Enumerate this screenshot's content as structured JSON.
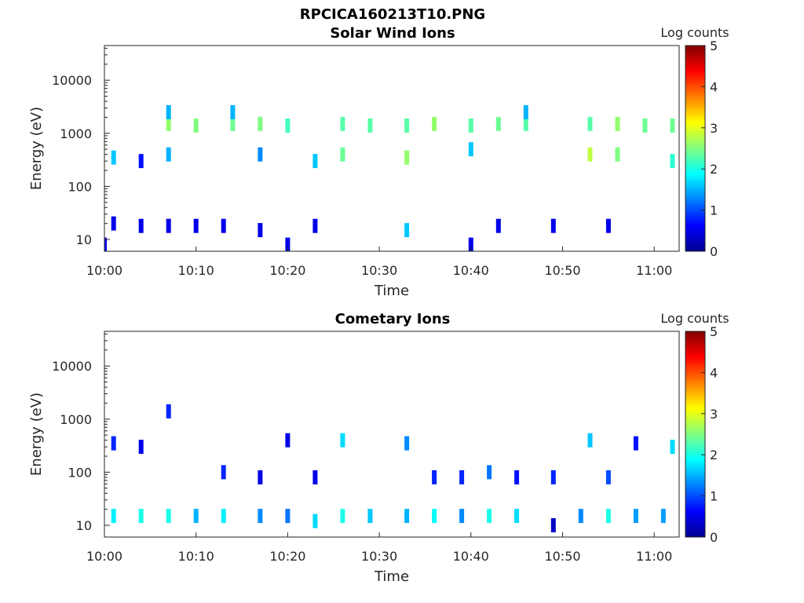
{
  "figure": {
    "title": "RPCICA160213T10.PNG"
  },
  "chart_data": [
    {
      "type": "heatmap",
      "title": "Solar Wind Ions",
      "xlabel": "Time",
      "ylabel": "Energy (eV)",
      "yscale": "log",
      "ylim": [
        6,
        45000
      ],
      "x_ticks": [
        "10:00",
        "10:10",
        "10:20",
        "10:30",
        "10:40",
        "10:50",
        "11:00"
      ],
      "y_ticks": [
        "10",
        "100",
        "1000",
        "10000"
      ],
      "colorbar": {
        "label": "Log counts",
        "range": [
          0,
          5
        ],
        "ticks": [
          "0",
          "1",
          "2",
          "3",
          "4",
          "5"
        ]
      },
      "cells": [
        {
          "t": "10:00",
          "e": 8,
          "v": 0.5
        },
        {
          "t": "10:01",
          "e": 20,
          "v": 0.5
        },
        {
          "t": "10:01",
          "e": 350,
          "v": 1.6
        },
        {
          "t": "10:04",
          "e": 18,
          "v": 0.5
        },
        {
          "t": "10:04",
          "e": 300,
          "v": 0.7
        },
        {
          "t": "10:07",
          "e": 18,
          "v": 0.5
        },
        {
          "t": "10:07",
          "e": 1500,
          "v": 2.6
        },
        {
          "t": "10:07",
          "e": 2500,
          "v": 1.5
        },
        {
          "t": "10:07",
          "e": 400,
          "v": 1.5
        },
        {
          "t": "10:10",
          "e": 18,
          "v": 0.5
        },
        {
          "t": "10:10",
          "e": 1400,
          "v": 2.5
        },
        {
          "t": "10:13",
          "e": 18,
          "v": 0.5
        },
        {
          "t": "10:14",
          "e": 1500,
          "v": 2.4
        },
        {
          "t": "10:14",
          "e": 2500,
          "v": 1.5
        },
        {
          "t": "10:17",
          "e": 15,
          "v": 0.5
        },
        {
          "t": "10:17",
          "e": 1500,
          "v": 2.5
        },
        {
          "t": "10:17",
          "e": 400,
          "v": 1.3
        },
        {
          "t": "10:20",
          "e": 8,
          "v": 0.5
        },
        {
          "t": "10:20",
          "e": 1400,
          "v": 2.2
        },
        {
          "t": "10:23",
          "e": 18,
          "v": 0.5
        },
        {
          "t": "10:23",
          "e": 300,
          "v": 1.6
        },
        {
          "t": "10:26",
          "e": 1500,
          "v": 2.3
        },
        {
          "t": "10:26",
          "e": 400,
          "v": 2.4
        },
        {
          "t": "10:29",
          "e": 1400,
          "v": 2.3
        },
        {
          "t": "10:33",
          "e": 1400,
          "v": 2.3
        },
        {
          "t": "10:33",
          "e": 350,
          "v": 2.6
        },
        {
          "t": "10:33",
          "e": 15,
          "v": 1.6
        },
        {
          "t": "10:36",
          "e": 1500,
          "v": 2.6
        },
        {
          "t": "10:40",
          "e": 1400,
          "v": 2.3
        },
        {
          "t": "10:40",
          "e": 500,
          "v": 1.6
        },
        {
          "t": "10:40",
          "e": 8,
          "v": 0.5
        },
        {
          "t": "10:43",
          "e": 1500,
          "v": 2.4
        },
        {
          "t": "10:43",
          "e": 18,
          "v": 0.5
        },
        {
          "t": "10:46",
          "e": 1500,
          "v": 2.3
        },
        {
          "t": "10:46",
          "e": 2500,
          "v": 1.5
        },
        {
          "t": "10:49",
          "e": 18,
          "v": 0.5
        },
        {
          "t": "10:53",
          "e": 1500,
          "v": 2.3
        },
        {
          "t": "10:53",
          "e": 400,
          "v": 2.8
        },
        {
          "t": "10:56",
          "e": 1500,
          "v": 2.6
        },
        {
          "t": "10:56",
          "e": 400,
          "v": 2.5
        },
        {
          "t": "10:55",
          "e": 18,
          "v": 0.5
        },
        {
          "t": "10:59",
          "e": 1400,
          "v": 2.4
        },
        {
          "t": "11:02",
          "e": 1400,
          "v": 2.4
        },
        {
          "t": "11:02",
          "e": 300,
          "v": 2.1
        }
      ]
    },
    {
      "type": "heatmap",
      "title": "Cometary Ions",
      "xlabel": "Time",
      "ylabel": "Energy (eV)",
      "yscale": "log",
      "ylim": [
        6,
        45000
      ],
      "x_ticks": [
        "10:00",
        "10:10",
        "10:20",
        "10:30",
        "10:40",
        "10:50",
        "11:00"
      ],
      "y_ticks": [
        "10",
        "100",
        "1000",
        "10000"
      ],
      "colorbar": {
        "label": "Log counts",
        "range": [
          0,
          5
        ],
        "ticks": [
          "0",
          "1",
          "2",
          "3",
          "4",
          "5"
        ]
      },
      "cells": [
        {
          "t": "10:01",
          "e": 15,
          "v": 1.8
        },
        {
          "t": "10:01",
          "e": 350,
          "v": 0.8
        },
        {
          "t": "10:04",
          "e": 15,
          "v": 2.0
        },
        {
          "t": "10:04",
          "e": 300,
          "v": 0.5
        },
        {
          "t": "10:07",
          "e": 15,
          "v": 2.0
        },
        {
          "t": "10:07",
          "e": 1400,
          "v": 0.8
        },
        {
          "t": "10:10",
          "e": 15,
          "v": 1.5
        },
        {
          "t": "10:13",
          "e": 15,
          "v": 1.8
        },
        {
          "t": "10:13",
          "e": 100,
          "v": 0.8
        },
        {
          "t": "10:17",
          "e": 15,
          "v": 1.3
        },
        {
          "t": "10:17",
          "e": 80,
          "v": 0.5
        },
        {
          "t": "10:20",
          "e": 15,
          "v": 1.2
        },
        {
          "t": "10:20",
          "e": 400,
          "v": 0.5
        },
        {
          "t": "10:23",
          "e": 12,
          "v": 1.7
        },
        {
          "t": "10:23",
          "e": 80,
          "v": 0.5
        },
        {
          "t": "10:26",
          "e": 15,
          "v": 2.0
        },
        {
          "t": "10:26",
          "e": 400,
          "v": 1.7
        },
        {
          "t": "10:29",
          "e": 15,
          "v": 1.6
        },
        {
          "t": "10:33",
          "e": 15,
          "v": 1.5
        },
        {
          "t": "10:33",
          "e": 350,
          "v": 1.3
        },
        {
          "t": "10:36",
          "e": 15,
          "v": 1.9
        },
        {
          "t": "10:36",
          "e": 80,
          "v": 0.8
        },
        {
          "t": "10:39",
          "e": 15,
          "v": 1.3
        },
        {
          "t": "10:39",
          "e": 80,
          "v": 0.8
        },
        {
          "t": "10:42",
          "e": 15,
          "v": 2.0
        },
        {
          "t": "10:42",
          "e": 100,
          "v": 1.2
        },
        {
          "t": "10:45",
          "e": 15,
          "v": 1.7
        },
        {
          "t": "10:45",
          "e": 80,
          "v": 0.7
        },
        {
          "t": "10:49",
          "e": 10,
          "v": 0.3
        },
        {
          "t": "10:49",
          "e": 80,
          "v": 0.8
        },
        {
          "t": "10:52",
          "e": 15,
          "v": 1.3
        },
        {
          "t": "10:53",
          "e": 400,
          "v": 1.6
        },
        {
          "t": "10:55",
          "e": 15,
          "v": 2.0
        },
        {
          "t": "10:55",
          "e": 80,
          "v": 1.0
        },
        {
          "t": "10:58",
          "e": 15,
          "v": 1.4
        },
        {
          "t": "10:58",
          "e": 350,
          "v": 0.7
        },
        {
          "t": "11:01",
          "e": 15,
          "v": 1.4
        },
        {
          "t": "11:02",
          "e": 300,
          "v": 1.7
        }
      ]
    }
  ]
}
